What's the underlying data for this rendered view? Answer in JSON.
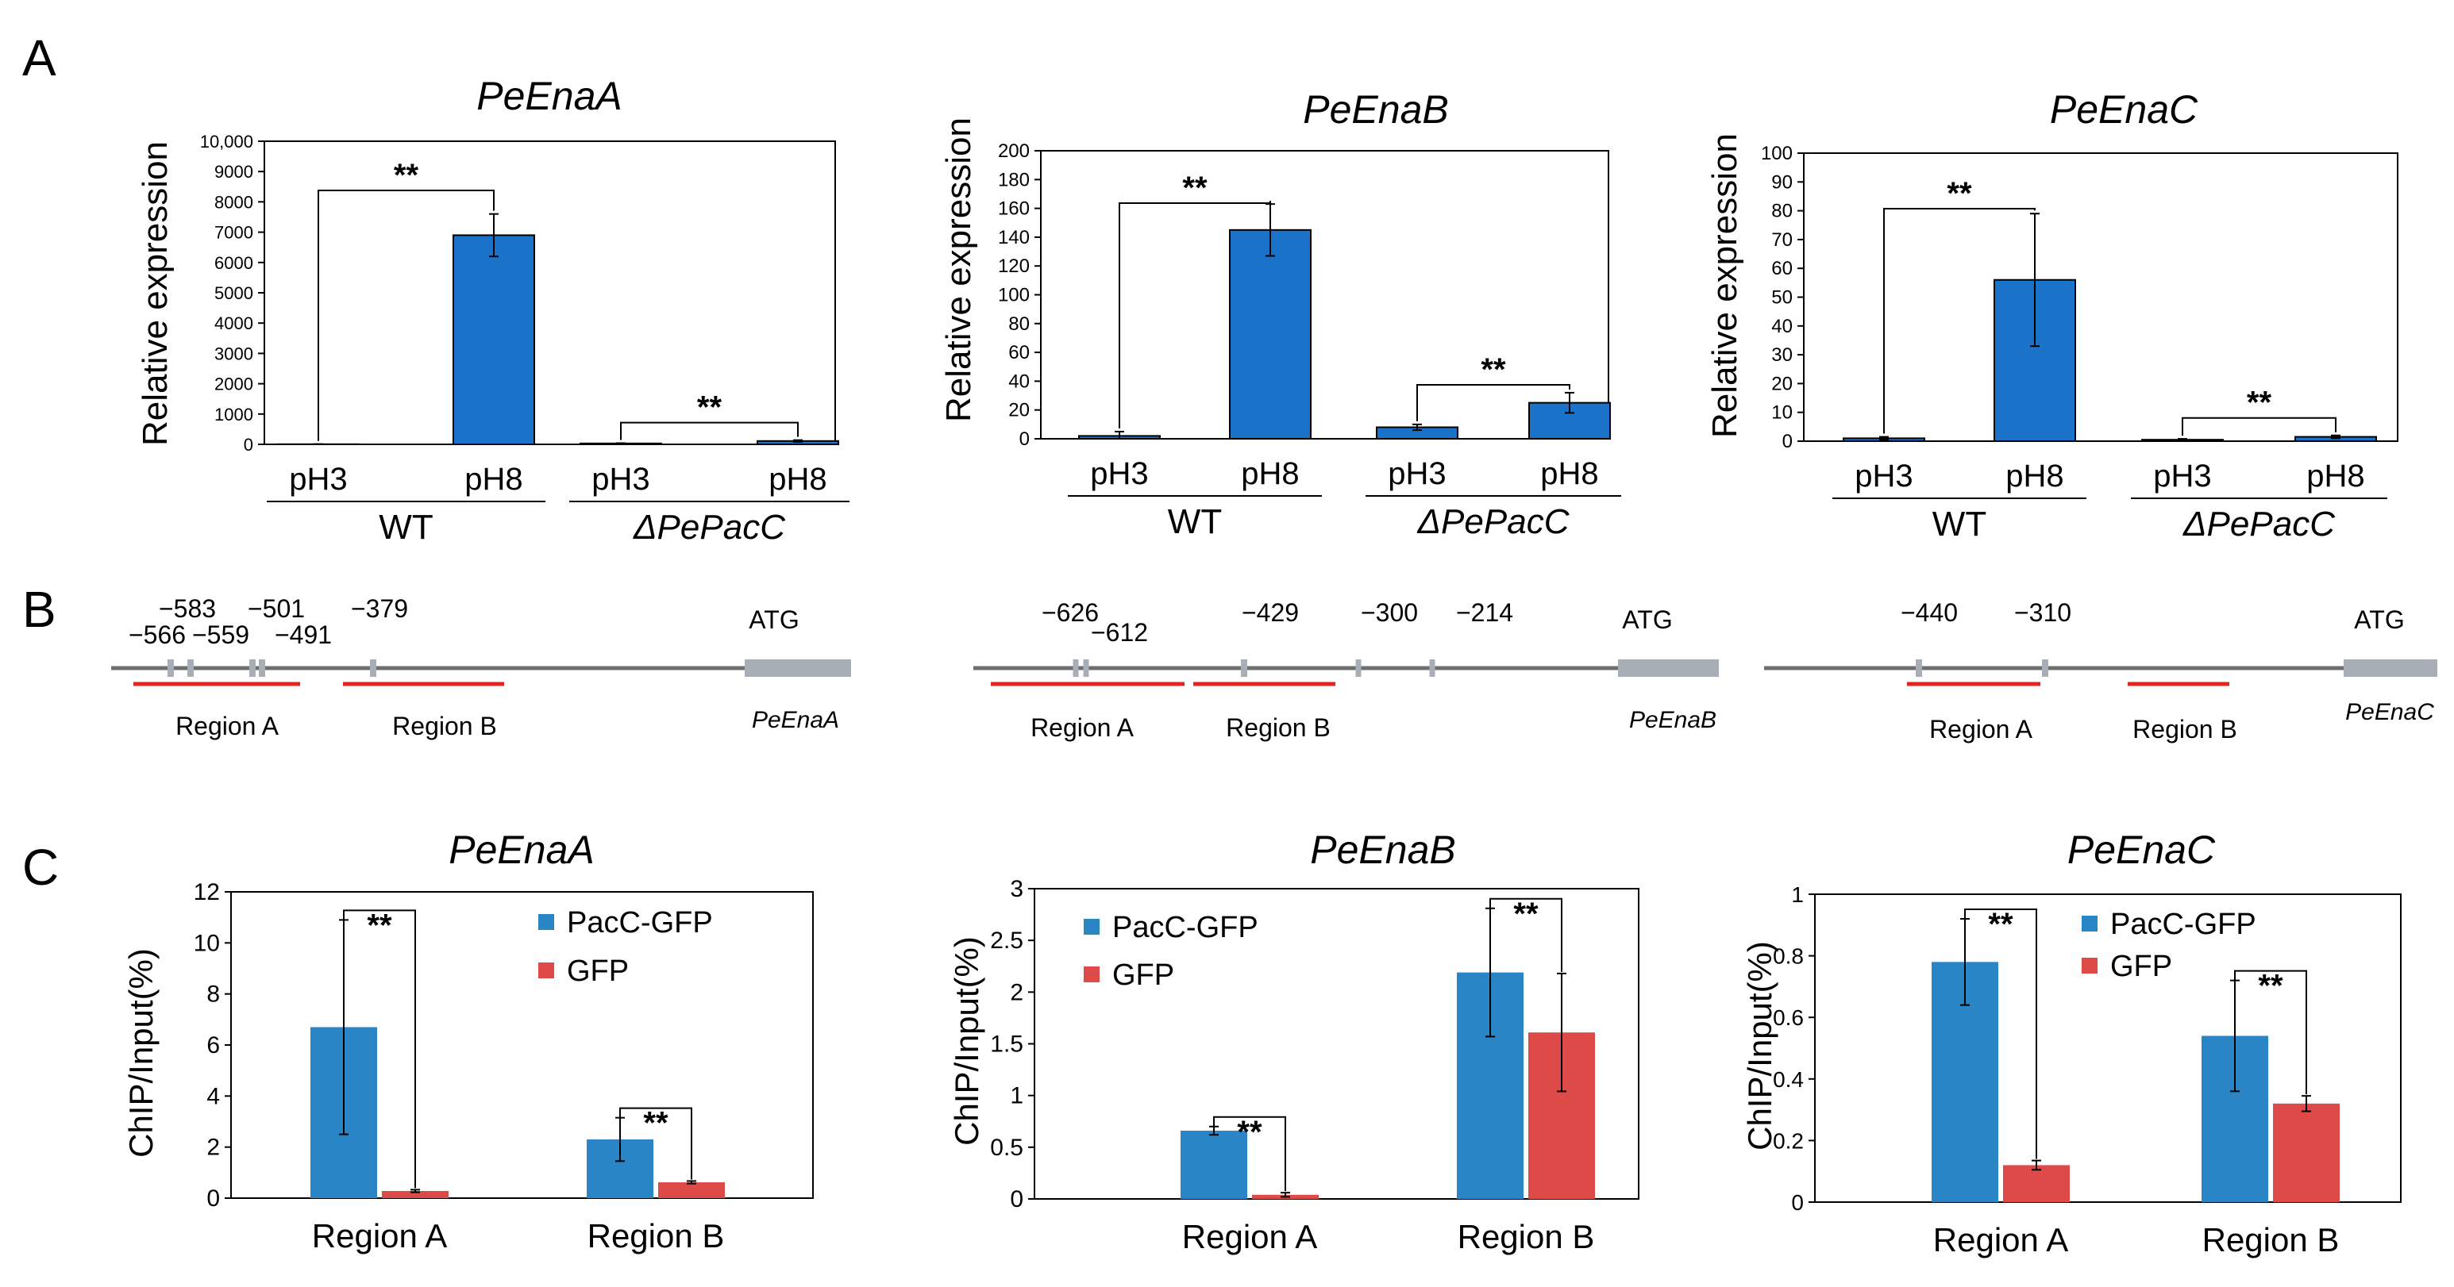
{
  "panel_letters": [
    "A",
    "B",
    "C"
  ],
  "chart_data": [
    {
      "panel": "A",
      "type": "bar",
      "title": "PeEnaA",
      "ylabel": "Relative expression",
      "ylim": [
        0,
        10000
      ],
      "yticks": [
        "0",
        "1000",
        "2000",
        "3000",
        "4000",
        "5000",
        "6000",
        "7000",
        "8000",
        "9000",
        "10,000"
      ],
      "categories": [
        "pH3",
        "pH8",
        "pH3",
        "pH8"
      ],
      "groups": [
        "WT",
        "ΔPePacC"
      ],
      "values": [
        5,
        6900,
        30,
        110
      ],
      "errors": [
        3,
        700,
        10,
        30
      ],
      "significance": [
        {
          "between": [
            0,
            1
          ],
          "label": "**"
        },
        {
          "between": [
            2,
            3
          ],
          "label": "**"
        }
      ],
      "color": "#1a72c9",
      "grid": false
    },
    {
      "panel": "A",
      "type": "bar",
      "title": "PeEnaB",
      "ylabel": "Relative expression",
      "ylim": [
        0,
        200
      ],
      "yticks": [
        "0",
        "20",
        "40",
        "60",
        "80",
        "100",
        "120",
        "140",
        "160",
        "180",
        "200"
      ],
      "categories": [
        "pH3",
        "pH8",
        "pH3",
        "pH8"
      ],
      "groups": [
        "WT",
        "ΔPePacC"
      ],
      "values": [
        2,
        145,
        8,
        25
      ],
      "errors": [
        3,
        18,
        2,
        7
      ],
      "significance": [
        {
          "between": [
            0,
            1
          ],
          "label": "**"
        },
        {
          "between": [
            2,
            3
          ],
          "label": "**"
        }
      ],
      "color": "#1a72c9",
      "grid": false
    },
    {
      "panel": "A",
      "type": "bar",
      "title": "PeEnaC",
      "ylabel": "Relative expression",
      "ylim": [
        0,
        100
      ],
      "yticks": [
        "0",
        "10",
        "20",
        "30",
        "40",
        "50",
        "60",
        "70",
        "80",
        "90",
        "100"
      ],
      "categories": [
        "pH3",
        "pH8",
        "pH3",
        "pH8"
      ],
      "groups": [
        "WT",
        "ΔPePacC"
      ],
      "values": [
        1,
        56,
        0.5,
        1.5
      ],
      "errors": [
        0.5,
        23,
        0.3,
        0.5
      ],
      "significance": [
        {
          "between": [
            0,
            1
          ],
          "label": "**"
        },
        {
          "between": [
            2,
            3
          ],
          "label": "**"
        }
      ],
      "color": "#1a72c9",
      "grid": false
    },
    {
      "panel": "C",
      "type": "bar",
      "title": "PeEnaA",
      "ylabel": "ChIP/Input(%)",
      "ylim": [
        0,
        12
      ],
      "yticks": [
        "0",
        "2",
        "4",
        "6",
        "8",
        "10",
        "12"
      ],
      "categories": [
        "Region A",
        "Region B"
      ],
      "series": [
        {
          "name": "PacC-GFP",
          "color": "#2a85c6",
          "values": [
            6.7,
            2.3
          ],
          "errors": [
            4.2,
            0.85
          ]
        },
        {
          "name": "GFP",
          "color": "#de4a48",
          "values": [
            0.28,
            0.62
          ],
          "errors": [
            0.05,
            0.05
          ]
        }
      ],
      "significance": [
        {
          "category": 0,
          "label": "**"
        },
        {
          "category": 1,
          "label": "**"
        }
      ],
      "legend": "top-right",
      "grid": false
    },
    {
      "panel": "C",
      "type": "bar",
      "title": "PeEnaB",
      "ylabel": "ChIP/Input(%)",
      "ylim": [
        0,
        3
      ],
      "yticks": [
        "0",
        "0.5",
        "1",
        "1.5",
        "2",
        "2.5",
        "3"
      ],
      "categories": [
        "Region A",
        "Region B"
      ],
      "series": [
        {
          "name": "PacC-GFP",
          "color": "#2a85c6",
          "values": [
            0.66,
            2.19
          ],
          "errors": [
            0.04,
            0.62
          ]
        },
        {
          "name": "GFP",
          "color": "#de4a48",
          "values": [
            0.04,
            1.61
          ],
          "errors": [
            0.02,
            0.57
          ]
        }
      ],
      "significance": [
        {
          "category": 0,
          "label": "**"
        },
        {
          "category": 1,
          "label": "**"
        }
      ],
      "legend": "top-left",
      "grid": false
    },
    {
      "panel": "C",
      "type": "bar",
      "title": "PeEnaC",
      "ylabel": "ChIP/Input(%)",
      "ylim": [
        0,
        1
      ],
      "yticks": [
        "0",
        "0.2",
        "0.4",
        "0.6",
        "0.8",
        "1"
      ],
      "categories": [
        "Region A",
        "Region B"
      ],
      "series": [
        {
          "name": "PacC-GFP",
          "color": "#2a85c6",
          "values": [
            0.78,
            0.54
          ],
          "errors": [
            0.14,
            0.18
          ]
        },
        {
          "name": "GFP",
          "color": "#de4a48",
          "values": [
            0.12,
            0.32
          ],
          "errors": [
            0.015,
            0.025
          ]
        }
      ],
      "significance": [
        {
          "category": 0,
          "label": "**"
        },
        {
          "category": 1,
          "label": "**"
        }
      ],
      "legend": "top-right",
      "grid": false
    }
  ],
  "promoters": [
    {
      "gene": "PeEnaA",
      "start_label": "ATG",
      "sites": [
        "−583",
        "−566",
        "−559",
        "−501",
        "−491",
        "−379"
      ],
      "regions": [
        "Region A",
        "Region B"
      ]
    },
    {
      "gene": "PeEnaB",
      "start_label": "ATG",
      "sites": [
        "−626",
        "−612",
        "−429",
        "−300",
        "−214"
      ],
      "regions": [
        "Region A",
        "Region B"
      ]
    },
    {
      "gene": "PeEnaC",
      "start_label": "ATG",
      "sites": [
        "−440",
        "−310"
      ],
      "regions": [
        "Region A",
        "Region B"
      ]
    }
  ]
}
